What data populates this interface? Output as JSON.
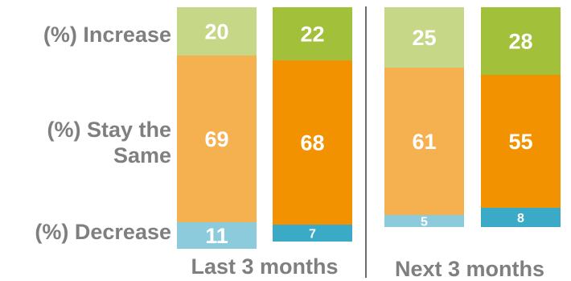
{
  "chart_data": {
    "type": "bar",
    "stacked": true,
    "orientation": "vertical",
    "percent_of_total": true,
    "row_labels": {
      "increase": "(%) Increase",
      "stay_line1": "(%) Stay the",
      "stay_line2": "Same",
      "decrease": "(%) Decrease"
    },
    "groups": [
      {
        "label": "Last 3 months",
        "bars": 2
      },
      {
        "label": "Next 3 months",
        "bars": 2
      }
    ],
    "bars": [
      {
        "increase": 20,
        "stay": 69,
        "decrease": 11
      },
      {
        "increase": 22,
        "stay": 68,
        "decrease": 7
      },
      {
        "increase": 25,
        "stay": 61,
        "decrease": 5
      },
      {
        "increase": 28,
        "stay": 55,
        "decrease": 8
      }
    ],
    "colors": {
      "increase": [
        "#c6d887",
        "#a2c03a",
        "#c6d887",
        "#a2c03a"
      ],
      "stay": [
        "#f5b04f",
        "#f39200",
        "#f5b04f",
        "#f39200"
      ],
      "decrease": [
        "#8ccbdc",
        "#3aaac6",
        "#8ccbdc",
        "#3aaac6"
      ]
    },
    "divider_color": "#6d6d6d",
    "label_color": "#7f7f7f"
  }
}
